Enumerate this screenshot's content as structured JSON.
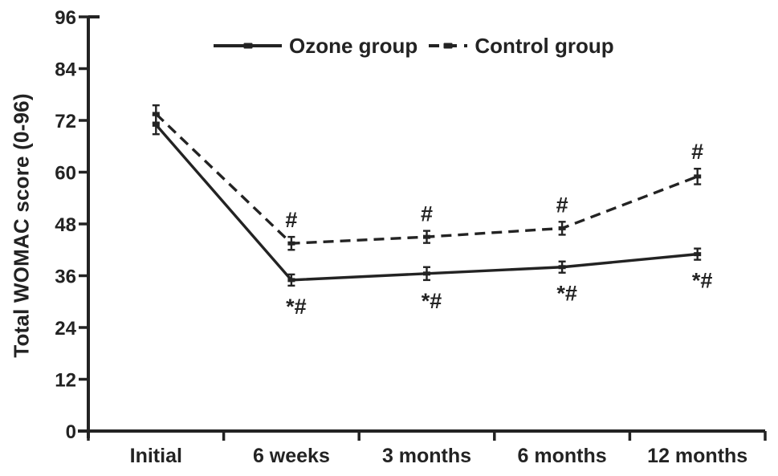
{
  "chart_data": {
    "type": "line",
    "title": "",
    "ylabel": "Total WOMAC score (0-96)",
    "xlabel": "",
    "categories": [
      "Initial",
      "6 weeks",
      "3 months",
      "6 months",
      "12 months"
    ],
    "ylim": [
      0,
      96
    ],
    "yticks": [
      0,
      12,
      24,
      36,
      48,
      60,
      72,
      84,
      96
    ],
    "grid": false,
    "legend_position": "top-center",
    "ink_color": "#232323",
    "background_color": "#ffffff",
    "series": [
      {
        "name": "Ozone group",
        "line_style": "solid",
        "marker": "dash",
        "values": [
          71,
          35,
          36.5,
          38,
          41
        ],
        "error_bars": [
          2.2,
          1.3,
          1.5,
          1.3,
          1.3
        ],
        "annotations": [
          "",
          "*#",
          "*#",
          "*#",
          "*#"
        ],
        "annotation_side": "below"
      },
      {
        "name": "Control group",
        "line_style": "dashed",
        "marker": "dash",
        "values": [
          73.5,
          43.5,
          45,
          47,
          59
        ],
        "error_bars": [
          2.0,
          1.5,
          1.4,
          1.5,
          1.8
        ],
        "annotations": [
          "",
          "#",
          "#",
          "#",
          "#"
        ],
        "annotation_side": "above"
      }
    ]
  }
}
